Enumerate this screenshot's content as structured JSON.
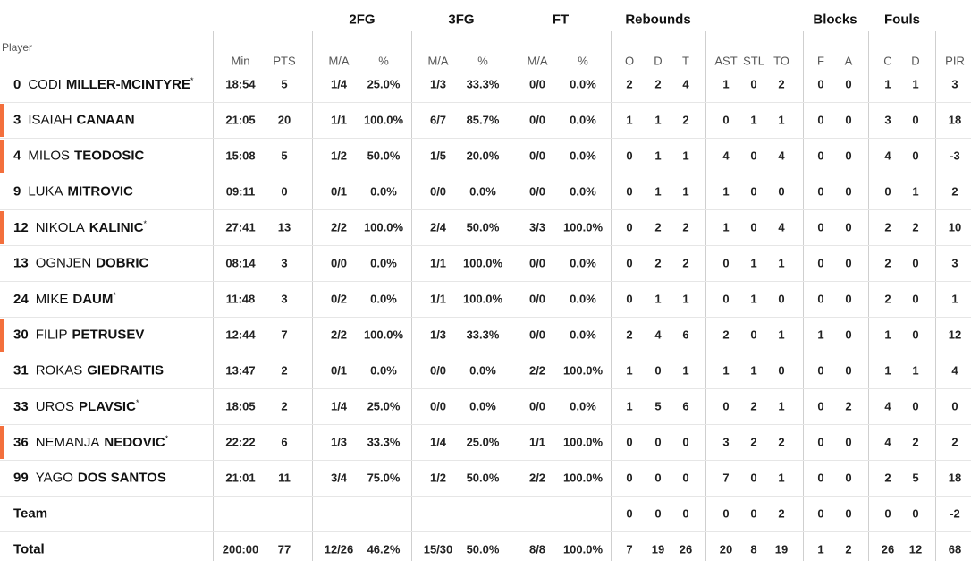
{
  "header": {
    "player_label": "Player",
    "groups": [
      "2FG",
      "3FG",
      "FT",
      "Rebounds",
      "Blocks",
      "Fouls"
    ],
    "columns": [
      "Min",
      "PTS",
      "M/A",
      "%",
      "M/A",
      "%",
      "M/A",
      "%",
      "O",
      "D",
      "T",
      "AST",
      "STL",
      "TO",
      "F",
      "A",
      "C",
      "D",
      "PIR"
    ]
  },
  "style": {
    "highlight_color": "#f36f3c"
  },
  "rows": [
    {
      "number": "0",
      "first_name": "CODI",
      "last_name": "MILLER-MCINTYRE",
      "mark": "*",
      "stats": [
        "18:54",
        5,
        "1/4",
        "25.0%",
        "1/3",
        "33.3%",
        "0/0",
        "0.0%",
        2,
        2,
        4,
        1,
        0,
        2,
        0,
        0,
        1,
        1,
        3
      ]
    },
    {
      "number": "3",
      "first_name": "ISAIAH",
      "last_name": "CANAAN",
      "highlight": true,
      "stats": [
        "21:05",
        20,
        "1/1",
        "100.0%",
        "6/7",
        "85.7%",
        "0/0",
        "0.0%",
        1,
        1,
        2,
        0,
        1,
        1,
        0,
        0,
        3,
        0,
        18
      ]
    },
    {
      "number": "4",
      "first_name": "MILOS",
      "last_name": "TEODOSIC",
      "highlight": true,
      "stats": [
        "15:08",
        5,
        "1/2",
        "50.0%",
        "1/5",
        "20.0%",
        "0/0",
        "0.0%",
        0,
        1,
        1,
        4,
        0,
        4,
        0,
        0,
        4,
        0,
        -3
      ]
    },
    {
      "number": "9",
      "first_name": "LUKA",
      "last_name": "MITROVIC",
      "stats": [
        "09:11",
        0,
        "0/1",
        "0.0%",
        "0/0",
        "0.0%",
        "0/0",
        "0.0%",
        0,
        1,
        1,
        1,
        0,
        0,
        0,
        0,
        0,
        1,
        2
      ]
    },
    {
      "number": "12",
      "first_name": "NIKOLA",
      "last_name": "KALINIC",
      "mark": "*",
      "highlight": true,
      "stats": [
        "27:41",
        13,
        "2/2",
        "100.0%",
        "2/4",
        "50.0%",
        "3/3",
        "100.0%",
        0,
        2,
        2,
        1,
        0,
        4,
        0,
        0,
        2,
        2,
        10
      ]
    },
    {
      "number": "13",
      "first_name": "OGNJEN",
      "last_name": "DOBRIC",
      "stats": [
        "08:14",
        3,
        "0/0",
        "0.0%",
        "1/1",
        "100.0%",
        "0/0",
        "0.0%",
        0,
        2,
        2,
        0,
        1,
        1,
        0,
        0,
        2,
        0,
        3
      ]
    },
    {
      "number": "24",
      "first_name": "MIKE",
      "last_name": "DAUM",
      "mark": "*",
      "stats": [
        "11:48",
        3,
        "0/2",
        "0.0%",
        "1/1",
        "100.0%",
        "0/0",
        "0.0%",
        0,
        1,
        1,
        0,
        1,
        0,
        0,
        0,
        2,
        0,
        1
      ]
    },
    {
      "number": "30",
      "first_name": "FILIP",
      "last_name": "PETRUSEV",
      "highlight": true,
      "stats": [
        "12:44",
        7,
        "2/2",
        "100.0%",
        "1/3",
        "33.3%",
        "0/0",
        "0.0%",
        2,
        4,
        6,
        2,
        0,
        1,
        1,
        0,
        1,
        0,
        12
      ]
    },
    {
      "number": "31",
      "first_name": "ROKAS",
      "last_name": "GIEDRAITIS",
      "stats": [
        "13:47",
        2,
        "0/1",
        "0.0%",
        "0/0",
        "0.0%",
        "2/2",
        "100.0%",
        1,
        0,
        1,
        1,
        1,
        0,
        0,
        0,
        1,
        1,
        4
      ]
    },
    {
      "number": "33",
      "first_name": "UROS",
      "last_name": "PLAVSIC",
      "mark": "*",
      "stats": [
        "18:05",
        2,
        "1/4",
        "25.0%",
        "0/0",
        "0.0%",
        "0/0",
        "0.0%",
        1,
        5,
        6,
        0,
        2,
        1,
        0,
        2,
        4,
        0,
        0
      ]
    },
    {
      "number": "36",
      "first_name": "NEMANJA",
      "last_name": "NEDOVIC",
      "mark": "*",
      "highlight": true,
      "stats": [
        "22:22",
        6,
        "1/3",
        "33.3%",
        "1/4",
        "25.0%",
        "1/1",
        "100.0%",
        0,
        0,
        0,
        3,
        2,
        2,
        0,
        0,
        4,
        2,
        2
      ]
    },
    {
      "number": "99",
      "first_name": "YAGO",
      "last_name": "DOS SANTOS",
      "stats": [
        "21:01",
        11,
        "3/4",
        "75.0%",
        "1/2",
        "50.0%",
        "2/2",
        "100.0%",
        0,
        0,
        0,
        7,
        0,
        1,
        0,
        0,
        2,
        5,
        18
      ]
    }
  ],
  "team": {
    "label": "Team",
    "stats": [
      null,
      null,
      null,
      null,
      null,
      null,
      null,
      null,
      0,
      0,
      0,
      0,
      0,
      2,
      0,
      0,
      0,
      0,
      -2
    ]
  },
  "total": {
    "label": "Total",
    "stats": [
      "200:00",
      77,
      "12/26",
      "46.2%",
      "15/30",
      "50.0%",
      "8/8",
      "100.0%",
      7,
      19,
      26,
      20,
      8,
      19,
      1,
      2,
      26,
      12,
      68
    ]
  }
}
